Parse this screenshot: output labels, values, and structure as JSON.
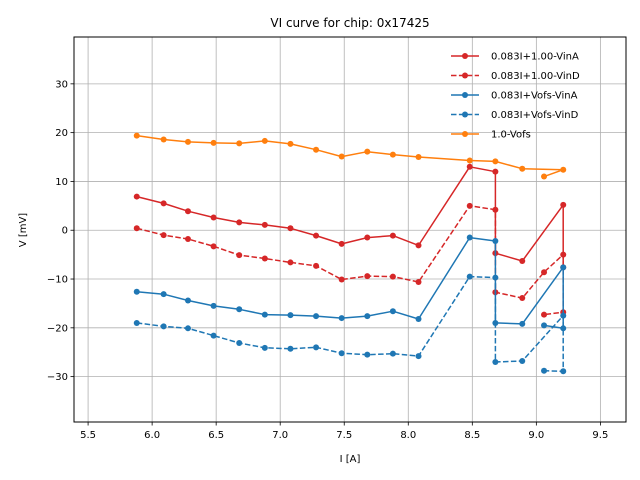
{
  "chart_data": {
    "type": "line",
    "title": "VI curve for chip: 0x17425",
    "xlabel": "I [A]",
    "ylabel": "V [mV]",
    "xlim": [
      5.39,
      9.7
    ],
    "ylim": [
      -39.3,
      39.6
    ],
    "xticks": [
      5.5,
      6.0,
      6.5,
      7.0,
      7.5,
      8.0,
      8.5,
      9.0,
      9.5
    ],
    "xtick_labels": [
      "5.5",
      "6.0",
      "6.5",
      "7.0",
      "7.5",
      "8.0",
      "8.5",
      "9.0",
      "9.5"
    ],
    "yticks": [
      -30,
      -20,
      -10,
      0,
      10,
      20,
      30
    ],
    "ytick_labels": [
      "−30",
      "−20",
      "−10",
      "0",
      "10",
      "20",
      "30"
    ],
    "grid": true,
    "legend_position": "top-right",
    "series": [
      {
        "name": "0.083I+1.00-VinA",
        "color": "#d62728",
        "linestyle": "solid",
        "x": [
          5.88,
          6.09,
          6.28,
          6.48,
          6.68,
          6.88,
          7.08,
          7.28,
          7.48,
          7.68,
          7.88,
          8.08,
          8.48,
          8.68,
          8.68,
          8.89,
          9.21,
          9.21
        ],
        "y": [
          6.9,
          5.5,
          3.9,
          2.6,
          1.6,
          1.1,
          0.4,
          -1.1,
          -2.8,
          -1.5,
          -1.1,
          -3.1,
          13.0,
          12.0,
          -4.7,
          -6.3,
          5.2,
          -7.6
        ]
      },
      {
        "name": "0.083I+1.00-VinD",
        "color": "#d62728",
        "linestyle": "dashed",
        "x": [
          5.88,
          6.09,
          6.28,
          6.48,
          6.68,
          6.88,
          7.08,
          7.28,
          7.48,
          7.68,
          7.88,
          8.08,
          8.48,
          8.68,
          8.68,
          8.89,
          9.06,
          9.21,
          9.21,
          9.06
        ],
        "y": [
          0.4,
          -1.0,
          -1.8,
          -3.3,
          -5.1,
          -5.8,
          -6.6,
          -7.3,
          -10.1,
          -9.4,
          -9.5,
          -10.6,
          5.0,
          4.2,
          -12.7,
          -13.9,
          -8.6,
          -5.0,
          -16.8,
          -17.3
        ]
      },
      {
        "name": "0.083I+Vofs-VinA",
        "color": "#1f77b4",
        "linestyle": "solid",
        "x": [
          5.88,
          6.09,
          6.28,
          6.48,
          6.68,
          6.88,
          7.08,
          7.28,
          7.48,
          7.68,
          7.88,
          8.08,
          8.48,
          8.68,
          8.68,
          8.89,
          9.21,
          9.21,
          9.06
        ],
        "y": [
          -12.6,
          -13.1,
          -14.4,
          -15.5,
          -16.2,
          -17.3,
          -17.4,
          -17.6,
          -18.0,
          -17.6,
          -16.6,
          -18.2,
          -1.5,
          -2.2,
          -19.0,
          -19.2,
          -7.6,
          -20.1,
          -19.5
        ]
      },
      {
        "name": "0.083I+Vofs-VinD",
        "color": "#1f77b4",
        "linestyle": "dashed",
        "x": [
          5.88,
          6.09,
          6.28,
          6.48,
          6.68,
          6.88,
          7.08,
          7.28,
          7.48,
          7.68,
          7.88,
          8.08,
          8.48,
          8.68,
          8.68,
          8.89,
          9.21,
          9.21,
          9.06
        ],
        "y": [
          -19.0,
          -19.7,
          -20.1,
          -21.6,
          -23.1,
          -24.1,
          -24.3,
          -24.0,
          -25.2,
          -25.5,
          -25.3,
          -25.8,
          -9.5,
          -9.7,
          -27.0,
          -26.8,
          -17.5,
          -28.9,
          -28.8
        ]
      },
      {
        "name": "1.0-Vofs",
        "color": "#ff7f0e",
        "linestyle": "solid",
        "x": [
          5.88,
          6.09,
          6.28,
          6.48,
          6.68,
          6.88,
          7.08,
          7.28,
          7.48,
          7.68,
          7.88,
          8.08,
          8.48,
          8.68,
          8.89,
          9.21,
          9.06
        ],
        "y": [
          19.4,
          18.6,
          18.1,
          17.9,
          17.8,
          18.3,
          17.7,
          16.5,
          15.1,
          16.1,
          15.5,
          15.0,
          14.3,
          14.1,
          12.6,
          12.4,
          11.0
        ]
      }
    ]
  }
}
